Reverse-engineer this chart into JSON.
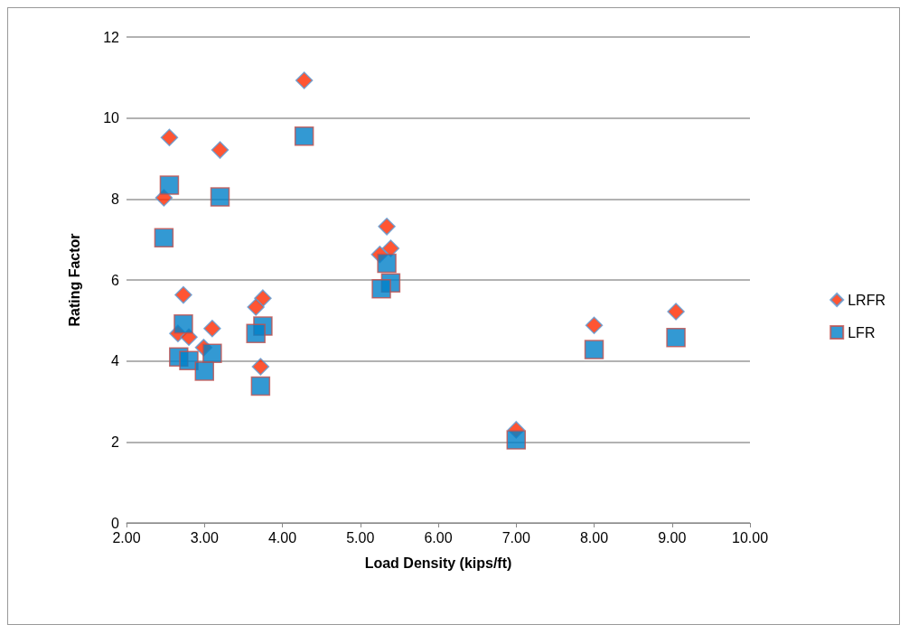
{
  "chart_data": {
    "type": "scatter",
    "xlabel": "Load Density (kips/ft)",
    "ylabel": "Rating Factor",
    "xlim": [
      2,
      10
    ],
    "xticks": [
      {
        "value": 2,
        "label": "2.00"
      },
      {
        "value": 3,
        "label": "3.00"
      },
      {
        "value": 4,
        "label": "4.00"
      },
      {
        "value": 5,
        "label": "5.00"
      },
      {
        "value": 6,
        "label": "6.00"
      },
      {
        "value": 7,
        "label": "7.00"
      },
      {
        "value": 8,
        "label": "8.00"
      },
      {
        "value": 9,
        "label": "9.00"
      },
      {
        "value": 10,
        "label": "10.00"
      }
    ],
    "ylim": [
      0,
      12
    ],
    "yticks": [
      0,
      2,
      4,
      6,
      8,
      10,
      12
    ],
    "grid": "y",
    "legend": "right",
    "series": [
      {
        "name": "LRFR",
        "color": "#ff2a00",
        "marker": "diamond",
        "x": [
          2.55,
          2.48,
          3.2,
          4.28,
          2.73,
          2.66,
          2.8,
          3.1,
          2.99,
          3.75,
          3.66,
          3.72,
          5.34,
          5.39,
          5.25,
          7.0,
          8.0,
          9.05
        ],
        "values": [
          9.52,
          8.03,
          9.21,
          10.93,
          5.63,
          4.68,
          4.59,
          4.8,
          4.33,
          5.55,
          5.33,
          3.86,
          7.32,
          6.78,
          6.63,
          2.3,
          4.88,
          5.22
        ]
      },
      {
        "name": "LFR",
        "color": "#0080c8",
        "marker": "square",
        "x": [
          2.55,
          2.48,
          3.2,
          4.28,
          2.73,
          2.67,
          2.8,
          3.1,
          3.0,
          3.75,
          3.66,
          3.72,
          5.34,
          5.39,
          5.27,
          7.0,
          8.0,
          9.05
        ],
        "values": [
          8.34,
          7.04,
          8.05,
          9.55,
          4.91,
          4.1,
          4.01,
          4.19,
          3.75,
          4.86,
          4.68,
          3.38,
          6.41,
          5.93,
          5.78,
          2.05,
          4.28,
          4.58
        ]
      }
    ]
  }
}
